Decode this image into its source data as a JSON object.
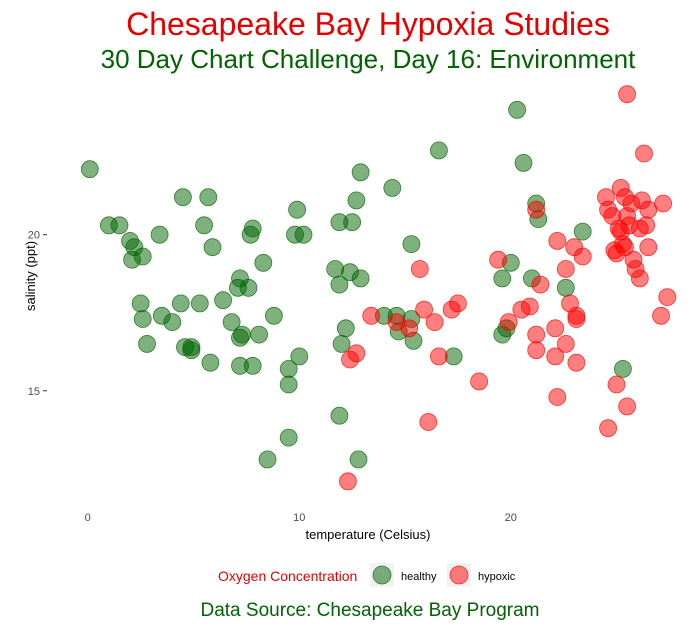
{
  "colors": {
    "title": "#e60000",
    "subtitle": "#006400",
    "caption": "#006400",
    "legend_title": "#e60000",
    "healthy": "#006400",
    "hypoxic": "#ff0000"
  },
  "chart_data": {
    "type": "scatter",
    "title": "Chesapeake Bay Hypoxia Studies",
    "subtitle": "30 Day Chart Challenge, Day 16: Environment",
    "xlabel": "temperature (Celsius)",
    "ylabel": "salinity (ppt)",
    "caption": "Data Source: Chesapeake Bay Program",
    "xlim": [
      -1.5,
      28
    ],
    "ylim": [
      11.5,
      24.7
    ],
    "xticks": [
      0,
      10,
      20
    ],
    "yticks": [
      15,
      20
    ],
    "grid": false,
    "legend": {
      "title": "Oxygen Concentration",
      "position": "bottom",
      "entries": [
        "healthy",
        "hypoxic"
      ]
    },
    "series": [
      {
        "name": "healthy",
        "points": [
          [
            0.1,
            22.1
          ],
          [
            1.0,
            20.3
          ],
          [
            1.5,
            20.3
          ],
          [
            2.0,
            19.8
          ],
          [
            2.2,
            19.6
          ],
          [
            2.1,
            19.2
          ],
          [
            2.6,
            19.3
          ],
          [
            3.4,
            20.0
          ],
          [
            2.5,
            17.8
          ],
          [
            2.6,
            17.3
          ],
          [
            2.8,
            16.5
          ],
          [
            3.5,
            17.4
          ],
          [
            4.0,
            17.2
          ],
          [
            4.4,
            17.8
          ],
          [
            4.5,
            21.2
          ],
          [
            4.6,
            16.4
          ],
          [
            4.9,
            16.4
          ],
          [
            4.9,
            16.3
          ],
          [
            5.3,
            17.8
          ],
          [
            5.5,
            20.3
          ],
          [
            5.7,
            21.2
          ],
          [
            5.8,
            15.9
          ],
          [
            5.9,
            19.6
          ],
          [
            6.4,
            17.9
          ],
          [
            6.8,
            17.2
          ],
          [
            7.1,
            18.3
          ],
          [
            7.2,
            18.6
          ],
          [
            7.2,
            16.7
          ],
          [
            7.2,
            15.8
          ],
          [
            7.3,
            16.8
          ],
          [
            7.6,
            18.3
          ],
          [
            7.7,
            20.0
          ],
          [
            7.8,
            20.2
          ],
          [
            7.8,
            15.8
          ],
          [
            8.1,
            16.8
          ],
          [
            8.3,
            19.1
          ],
          [
            8.5,
            12.8
          ],
          [
            8.8,
            17.4
          ],
          [
            9.5,
            15.7
          ],
          [
            9.5,
            15.2
          ],
          [
            9.5,
            13.5
          ],
          [
            9.8,
            20.0
          ],
          [
            9.9,
            20.8
          ],
          [
            10.0,
            16.1
          ],
          [
            10.2,
            20.0
          ],
          [
            11.7,
            18.9
          ],
          [
            11.9,
            18.4
          ],
          [
            11.9,
            20.4
          ],
          [
            11.9,
            14.2
          ],
          [
            12.0,
            16.5
          ],
          [
            12.2,
            17.0
          ],
          [
            12.4,
            18.8
          ],
          [
            12.5,
            20.4
          ],
          [
            12.7,
            21.1
          ],
          [
            12.9,
            18.6
          ],
          [
            12.9,
            22.0
          ],
          [
            12.8,
            12.8
          ],
          [
            14.0,
            17.4
          ],
          [
            14.4,
            21.5
          ],
          [
            14.6,
            17.4
          ],
          [
            14.7,
            16.9
          ],
          [
            15.3,
            17.3
          ],
          [
            15.3,
            19.7
          ],
          [
            15.4,
            16.6
          ],
          [
            16.6,
            22.7
          ],
          [
            17.3,
            16.1
          ],
          [
            19.6,
            18.6
          ],
          [
            19.6,
            16.8
          ],
          [
            19.8,
            17.0
          ],
          [
            20.0,
            19.1
          ],
          [
            20.3,
            24.0
          ],
          [
            20.6,
            22.3
          ],
          [
            21.0,
            18.6
          ],
          [
            21.2,
            21.0
          ],
          [
            21.3,
            20.5
          ],
          [
            22.6,
            18.3
          ],
          [
            23.4,
            20.1
          ],
          [
            25.3,
            15.7
          ]
        ]
      },
      {
        "name": "hypoxic",
        "points": [
          [
            12.3,
            12.1
          ],
          [
            12.4,
            16.0
          ],
          [
            12.7,
            16.2
          ],
          [
            13.4,
            17.4
          ],
          [
            14.6,
            17.2
          ],
          [
            15.2,
            17.0
          ],
          [
            15.7,
            18.9
          ],
          [
            15.9,
            17.6
          ],
          [
            16.1,
            14.0
          ],
          [
            16.4,
            17.2
          ],
          [
            16.6,
            16.1
          ],
          [
            17.2,
            17.6
          ],
          [
            17.5,
            17.8
          ],
          [
            18.5,
            15.3
          ],
          [
            19.4,
            19.2
          ],
          [
            19.9,
            17.2
          ],
          [
            20.5,
            17.6
          ],
          [
            20.9,
            17.7
          ],
          [
            21.2,
            20.8
          ],
          [
            21.2,
            16.8
          ],
          [
            21.2,
            16.3
          ],
          [
            21.4,
            18.4
          ],
          [
            22.1,
            17.0
          ],
          [
            22.1,
            16.1
          ],
          [
            22.2,
            14.8
          ],
          [
            22.2,
            19.8
          ],
          [
            22.6,
            18.9
          ],
          [
            22.6,
            16.5
          ],
          [
            22.8,
            17.8
          ],
          [
            23.0,
            19.6
          ],
          [
            23.1,
            17.4
          ],
          [
            23.1,
            17.3
          ],
          [
            23.1,
            15.9
          ],
          [
            23.4,
            19.3
          ],
          [
            24.5,
            21.2
          ],
          [
            24.6,
            20.8
          ],
          [
            24.6,
            13.8
          ],
          [
            24.8,
            20.6
          ],
          [
            24.9,
            19.5
          ],
          [
            25.0,
            15.2
          ],
          [
            25.0,
            19.4
          ],
          [
            25.1,
            20.2
          ],
          [
            25.2,
            21.5
          ],
          [
            25.2,
            20.1
          ],
          [
            25.3,
            19.7
          ],
          [
            25.4,
            21.2
          ],
          [
            25.4,
            19.6
          ],
          [
            25.5,
            24.5
          ],
          [
            25.5,
            20.6
          ],
          [
            25.5,
            14.5
          ],
          [
            25.6,
            20.3
          ],
          [
            25.7,
            21.0
          ],
          [
            25.8,
            19.2
          ],
          [
            25.9,
            18.9
          ],
          [
            26.1,
            18.6
          ],
          [
            26.1,
            20.2
          ],
          [
            26.2,
            21.1
          ],
          [
            26.3,
            22.6
          ],
          [
            26.4,
            20.3
          ],
          [
            26.5,
            20.8
          ],
          [
            26.5,
            19.6
          ],
          [
            27.1,
            17.4
          ],
          [
            27.2,
            21.0
          ],
          [
            27.4,
            18.0
          ]
        ]
      }
    ]
  }
}
